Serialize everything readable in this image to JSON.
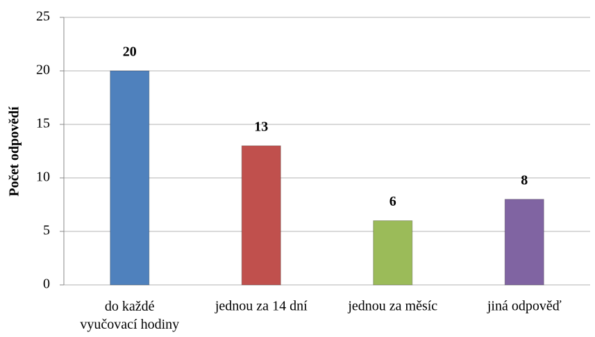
{
  "chart_data": {
    "type": "bar",
    "y_label": "Počet odpovědí",
    "categories": [
      "do každé vyučovací hodiny",
      "jednou za 14 dní",
      "jednou za měsíc",
      "jiná odpověď"
    ],
    "values": [
      20,
      13,
      6,
      8
    ],
    "colors": [
      "#4f81bd",
      "#c0504d",
      "#9bbb59",
      "#8064a2"
    ],
    "ylim": [
      0,
      25
    ],
    "yticks": [
      0,
      5,
      10,
      15,
      20,
      25
    ],
    "grid": true
  }
}
